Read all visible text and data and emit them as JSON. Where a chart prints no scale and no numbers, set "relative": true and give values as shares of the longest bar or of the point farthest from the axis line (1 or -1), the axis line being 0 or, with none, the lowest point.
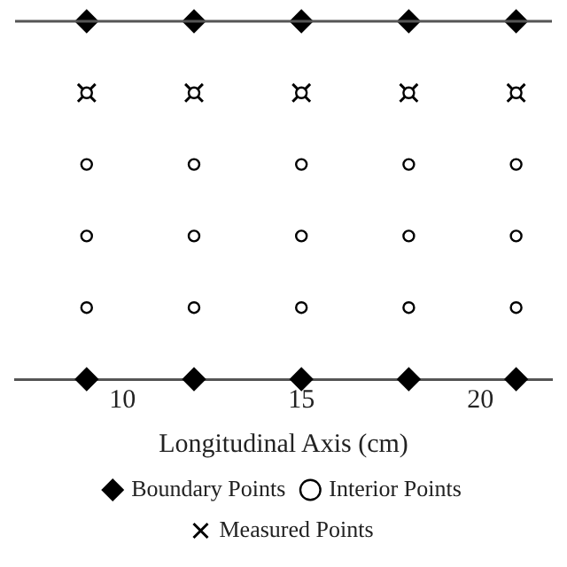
{
  "chart_data": {
    "type": "scatter",
    "xlabel": "Longitudinal Axis (cm)",
    "relative": true,
    "xlim": [
      7,
      22
    ],
    "xticks": [
      10,
      15,
      20
    ],
    "grid": false,
    "legend": "bottom",
    "series": [
      {
        "name": "Boundary Points",
        "color": "#000000",
        "marker": "diamond",
        "x": [
          9,
          12,
          15,
          18,
          21,
          9,
          12,
          15,
          18,
          21
        ],
        "values": [
          1,
          1,
          1,
          1,
          1,
          0,
          0,
          0,
          0,
          0
        ]
      },
      {
        "name": "Interior Points",
        "color": "#000000",
        "marker": "circle",
        "x": [
          9,
          12,
          15,
          18,
          21,
          9,
          12,
          15,
          18,
          21,
          9,
          12,
          15,
          18,
          21,
          9,
          12,
          15,
          18,
          21
        ],
        "values": [
          0.8,
          0.8,
          0.8,
          0.8,
          0.8,
          0.6,
          0.6,
          0.6,
          0.6,
          0.6,
          0.4,
          0.4,
          0.4,
          0.4,
          0.4,
          0.2,
          0.2,
          0.2,
          0.2,
          0.2
        ]
      },
      {
        "name": "Measured Points",
        "color": "#000000",
        "marker": "cross",
        "x": [
          9,
          12,
          15,
          18,
          21
        ],
        "values": [
          0.8,
          0.8,
          0.8,
          0.8,
          0.8
        ]
      }
    ]
  }
}
